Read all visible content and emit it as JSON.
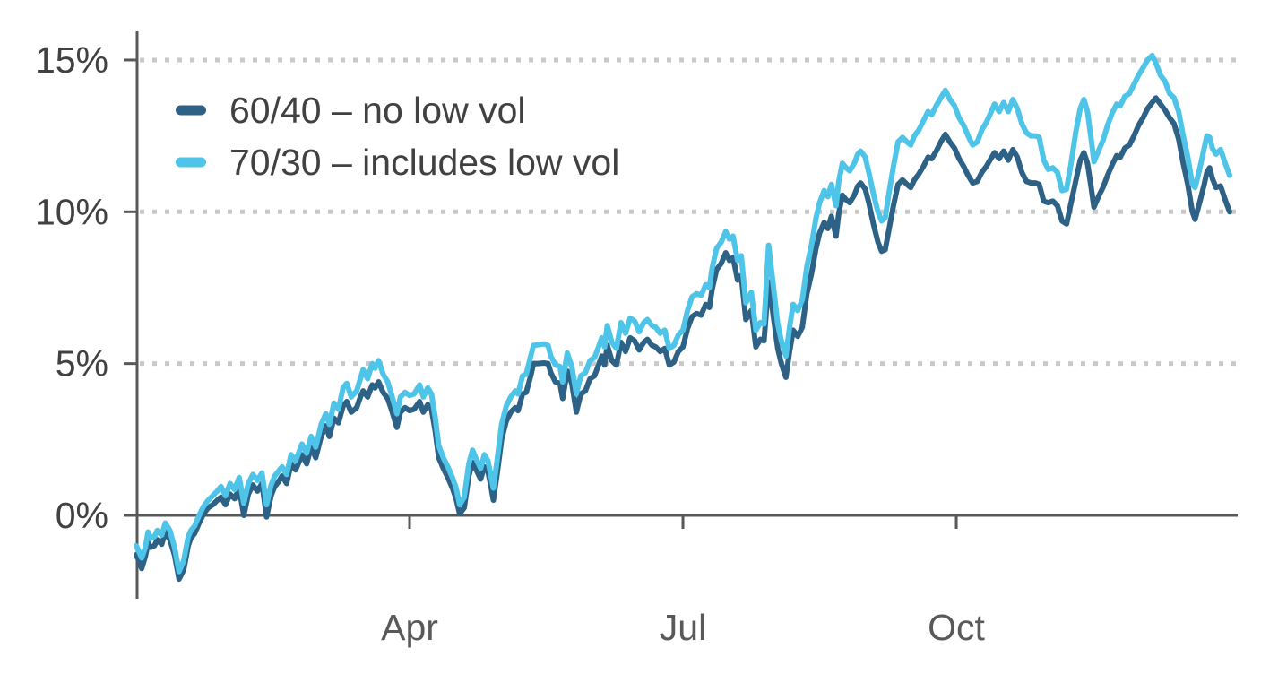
{
  "colors": {
    "background": "#ffffff",
    "axis": "#57585a",
    "grid": "#c9c9c9",
    "y_label": "#414042",
    "x_label": "#58595b",
    "legend_text": "#414042",
    "series_60_40": "#2d6286",
    "series_70_30": "#4fc4e9"
  },
  "chart_data": {
    "type": "line",
    "title": "",
    "xlabel": "",
    "ylabel": "",
    "x_unit": "months from start of year",
    "xlim_months": [
      0,
      12.08
    ],
    "ylim": [
      -2.75,
      15.9
    ],
    "grid": "dotted horizontal gridlines at 5%, 10%, 15%; solid baseline at 0%",
    "legend_position": "top-left",
    "y_ticks": [
      {
        "v": 0,
        "label": "0%"
      },
      {
        "v": 5,
        "label": "5%"
      },
      {
        "v": 10,
        "label": "10%"
      },
      {
        "v": 15,
        "label": "15%"
      }
    ],
    "x_ticks": [
      {
        "m": 3,
        "label": "Apr"
      },
      {
        "m": 6,
        "label": "Jul"
      },
      {
        "m": 9,
        "label": "Oct"
      }
    ],
    "x_months": [
      0,
      0.03,
      0.06,
      0.1,
      0.13,
      0.16,
      0.2,
      0.23,
      0.28,
      0.32,
      0.37,
      0.42,
      0.47,
      0.52,
      0.57,
      0.6,
      0.64,
      0.69,
      0.74,
      0.79,
      0.84,
      0.89,
      0.93,
      0.98,
      1.03,
      1.08,
      1.13,
      1.18,
      1.23,
      1.28,
      1.33,
      1.38,
      1.43,
      1.48,
      1.52,
      1.56,
      1.6,
      1.65,
      1.7,
      1.75,
      1.82,
      1.87,
      1.92,
      1.97,
      2.03,
      2.08,
      2.12,
      2.17,
      2.22,
      2.27,
      2.31,
      2.36,
      2.42,
      2.46,
      2.49,
      2.54,
      2.59,
      2.62,
      2.66,
      2.71,
      2.76,
      2.8,
      2.86,
      2.9,
      2.95,
      3.0,
      3.05,
      3.11,
      3.15,
      3.2,
      3.24,
      3.28,
      3.32,
      3.37,
      3.42,
      3.47,
      3.51,
      3.55,
      3.6,
      3.65,
      3.69,
      3.74,
      3.78,
      3.82,
      3.86,
      3.89,
      3.92,
      3.96,
      4.01,
      4.06,
      4.11,
      4.16,
      4.19,
      4.24,
      4.28,
      4.33,
      4.36,
      4.41,
      4.47,
      4.52,
      4.55,
      4.6,
      4.65,
      4.68,
      4.73,
      4.78,
      4.83,
      4.88,
      4.93,
      4.98,
      5.03,
      5.08,
      5.11,
      5.14,
      5.17,
      5.22,
      5.27,
      5.32,
      5.37,
      5.42,
      5.47,
      5.52,
      5.57,
      5.61,
      5.66,
      5.7,
      5.75,
      5.8,
      5.85,
      5.9,
      5.95,
      6.0,
      6.05,
      6.1,
      6.15,
      6.2,
      6.25,
      6.29,
      6.32,
      6.37,
      6.42,
      6.47,
      6.51,
      6.55,
      6.6,
      6.64,
      6.69,
      6.75,
      6.8,
      6.85,
      6.89,
      6.94,
      6.99,
      7.04,
      7.08,
      7.13,
      7.17,
      7.21,
      7.26,
      7.31,
      7.36,
      7.41,
      7.46,
      7.5,
      7.55,
      7.59,
      7.63,
      7.68,
      7.71,
      7.75,
      7.79,
      7.83,
      7.88,
      7.92,
      7.95,
      8.0,
      8.04,
      8.09,
      8.14,
      8.18,
      8.22,
      8.26,
      8.31,
      8.36,
      8.41,
      8.46,
      8.5,
      8.54,
      8.59,
      8.64,
      8.69,
      8.73,
      8.78,
      8.83,
      8.88,
      8.93,
      8.98,
      9.03,
      9.08,
      9.13,
      9.18,
      9.23,
      9.28,
      9.33,
      9.37,
      9.42,
      9.47,
      9.52,
      9.57,
      9.62,
      9.67,
      9.72,
      9.77,
      9.82,
      9.87,
      9.91,
      9.96,
      10.01,
      10.06,
      10.11,
      10.16,
      10.21,
      10.26,
      10.31,
      10.36,
      10.4,
      10.44,
      10.48,
      10.51,
      10.56,
      10.61,
      10.66,
      10.71,
      10.76,
      10.8,
      10.85,
      10.9,
      10.95,
      11.0,
      11.05,
      11.1,
      11.15,
      11.19,
      11.24,
      11.29,
      11.34,
      11.39,
      11.44,
      11.49,
      11.54,
      11.59,
      11.62,
      11.67,
      11.72,
      11.75,
      11.78,
      11.81,
      11.85,
      11.9,
      11.95,
      12.0
    ],
    "series": [
      {
        "name": "60/40 – no low vol",
        "color": "#2d6286",
        "values": [
          -1.3,
          -1.5,
          -1.75,
          -1.35,
          -0.9,
          -1.05,
          -1.0,
          -0.8,
          -0.95,
          -0.55,
          -0.8,
          -1.3,
          -2.1,
          -1.8,
          -1.0,
          -0.75,
          -0.6,
          -0.25,
          0.05,
          0.25,
          0.35,
          0.5,
          0.6,
          0.35,
          0.7,
          0.55,
          0.9,
          0.0,
          0.7,
          1.0,
          0.8,
          1.05,
          -0.05,
          0.65,
          0.95,
          1.1,
          1.3,
          1.05,
          1.7,
          1.5,
          2.0,
          1.7,
          2.25,
          1.9,
          2.6,
          2.95,
          2.6,
          3.2,
          3.05,
          3.6,
          3.75,
          3.4,
          3.55,
          3.9,
          4.1,
          3.9,
          4.3,
          4.2,
          4.4,
          4.05,
          3.85,
          3.5,
          2.9,
          3.4,
          3.55,
          3.45,
          3.5,
          3.75,
          3.4,
          3.65,
          3.5,
          2.8,
          1.9,
          1.55,
          1.25,
          0.9,
          0.55,
          0.05,
          0.25,
          1.3,
          1.75,
          1.45,
          1.2,
          1.6,
          1.45,
          1.0,
          0.5,
          1.35,
          2.5,
          3.1,
          3.4,
          3.55,
          3.45,
          4.0,
          4.05,
          4.6,
          5.0,
          5.0,
          5.02,
          5.0,
          4.7,
          4.4,
          4.35,
          3.85,
          4.75,
          4.35,
          3.4,
          4.0,
          4.1,
          4.5,
          4.6,
          5.0,
          5.25,
          4.95,
          5.6,
          5.1,
          4.95,
          5.7,
          5.4,
          5.85,
          5.75,
          5.45,
          5.7,
          5.8,
          5.6,
          5.55,
          5.4,
          5.5,
          4.95,
          5.05,
          5.4,
          5.55,
          6.15,
          6.55,
          6.65,
          6.6,
          6.95,
          6.85,
          7.45,
          8.1,
          8.3,
          8.65,
          8.4,
          8.5,
          7.75,
          7.9,
          6.45,
          6.75,
          5.55,
          5.8,
          5.75,
          7.7,
          6.6,
          5.5,
          5.0,
          4.55,
          5.4,
          6.1,
          5.9,
          6.2,
          7.3,
          7.95,
          8.8,
          9.3,
          9.65,
          9.45,
          9.85,
          9.2,
          9.95,
          10.55,
          10.4,
          10.3,
          10.55,
          10.85,
          10.95,
          10.75,
          10.3,
          9.6,
          9.0,
          8.7,
          8.75,
          9.4,
          10.2,
          10.9,
          11.05,
          10.9,
          10.8,
          11.05,
          11.25,
          11.5,
          11.8,
          11.75,
          12.0,
          12.3,
          12.55,
          12.3,
          12.1,
          11.75,
          11.5,
          11.2,
          10.95,
          11.0,
          11.3,
          11.5,
          11.7,
          11.95,
          11.75,
          12.0,
          11.7,
          12.05,
          11.8,
          11.3,
          11.0,
          10.95,
          10.95,
          10.9,
          10.35,
          10.3,
          10.35,
          10.2,
          9.7,
          9.6,
          10.3,
          11.0,
          11.7,
          11.95,
          11.6,
          10.8,
          10.15,
          10.5,
          10.8,
          11.2,
          11.55,
          11.85,
          11.8,
          12.1,
          12.2,
          12.5,
          12.85,
          13.1,
          13.4,
          13.6,
          13.75,
          13.55,
          13.35,
          13.1,
          12.9,
          12.4,
          11.6,
          10.9,
          10.0,
          9.75,
          10.3,
          10.9,
          11.3,
          11.45,
          11.1,
          10.8,
          10.85,
          10.4,
          10.0
        ]
      },
      {
        "name": "70/30 – includes low vol",
        "color": "#4fc4e9",
        "values": [
          -1.0,
          -1.2,
          -1.4,
          -1.05,
          -0.55,
          -0.75,
          -0.7,
          -0.5,
          -0.65,
          -0.25,
          -0.5,
          -1.05,
          -1.85,
          -1.5,
          -0.7,
          -0.5,
          -0.35,
          0.0,
          0.3,
          0.5,
          0.65,
          0.8,
          0.95,
          0.65,
          1.05,
          0.85,
          1.25,
          0.4,
          1.05,
          1.35,
          1.15,
          1.4,
          0.35,
          1.0,
          1.3,
          1.45,
          1.6,
          1.35,
          2.0,
          1.8,
          2.35,
          2.05,
          2.6,
          2.25,
          3.0,
          3.35,
          3.0,
          3.7,
          3.5,
          4.2,
          4.35,
          3.9,
          4.1,
          4.5,
          4.8,
          4.5,
          5.0,
          4.85,
          5.1,
          4.65,
          4.4,
          4.0,
          3.35,
          3.9,
          4.05,
          3.95,
          4.0,
          4.3,
          3.9,
          4.2,
          4.0,
          3.25,
          2.3,
          1.9,
          1.6,
          1.25,
          0.9,
          0.35,
          0.6,
          1.7,
          2.15,
          1.8,
          1.55,
          2.0,
          1.8,
          1.35,
          0.9,
          1.8,
          3.0,
          3.6,
          3.9,
          4.1,
          4.0,
          4.6,
          4.65,
          5.25,
          5.6,
          5.62,
          5.65,
          5.6,
          5.25,
          4.95,
          4.9,
          4.4,
          5.35,
          4.9,
          4.0,
          4.6,
          4.7,
          5.1,
          5.2,
          5.6,
          5.85,
          5.55,
          6.25,
          5.7,
          5.5,
          6.35,
          6.0,
          6.5,
          6.4,
          6.05,
          6.35,
          6.45,
          6.25,
          6.2,
          6.0,
          6.1,
          5.5,
          5.6,
          5.95,
          6.1,
          6.75,
          7.2,
          7.3,
          7.25,
          7.6,
          7.5,
          8.15,
          8.8,
          9.0,
          9.35,
          9.1,
          9.2,
          8.4,
          8.55,
          7.0,
          7.35,
          6.1,
          6.35,
          6.3,
          8.9,
          7.6,
          6.3,
          5.75,
          5.25,
          6.2,
          6.95,
          6.75,
          7.1,
          8.2,
          8.9,
          9.8,
          10.3,
          10.7,
          10.5,
          10.9,
          10.2,
          11.0,
          11.6,
          11.45,
          11.35,
          11.6,
          11.9,
          12.0,
          11.8,
          11.3,
          10.6,
          10.0,
          9.7,
          9.8,
          10.6,
          11.5,
          12.3,
          12.45,
          12.3,
          12.2,
          12.5,
          12.7,
          13.0,
          13.3,
          13.2,
          13.5,
          13.75,
          14.0,
          13.7,
          13.5,
          13.1,
          12.85,
          12.5,
          12.2,
          12.3,
          12.7,
          12.95,
          13.2,
          13.55,
          13.3,
          13.6,
          13.3,
          13.7,
          13.4,
          12.9,
          12.6,
          12.5,
          12.5,
          12.45,
          11.7,
          11.4,
          11.45,
          11.3,
          10.7,
          10.75,
          11.6,
          12.6,
          13.4,
          13.7,
          13.3,
          12.4,
          11.65,
          12.0,
          12.35,
          12.85,
          13.25,
          13.55,
          13.5,
          13.8,
          13.9,
          14.2,
          14.5,
          14.75,
          15.0,
          15.15,
          14.9,
          14.5,
          14.3,
          13.9,
          13.75,
          13.3,
          12.5,
          11.8,
          10.9,
          10.8,
          11.4,
          12.1,
          12.5,
          12.45,
          12.1,
          11.9,
          12.05,
          11.6,
          11.2
        ]
      }
    ]
  },
  "legend": {
    "items": [
      {
        "label": "60/40 – no low vol"
      },
      {
        "label": "70/30 – includes low vol"
      }
    ]
  }
}
